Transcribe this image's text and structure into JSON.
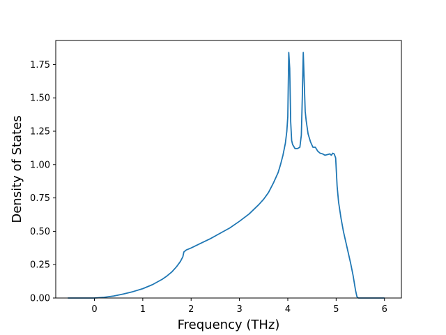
{
  "chart_data": {
    "type": "line",
    "xlabel": "Frequency (THz)",
    "ylabel": "Density of States",
    "xlim": [
      -0.8,
      6.35
    ],
    "ylim": [
      0,
      1.93
    ],
    "xticks": [
      0,
      1,
      2,
      3,
      4,
      5,
      6
    ],
    "xtick_labels": [
      "0",
      "1",
      "2",
      "3",
      "4",
      "5",
      "6"
    ],
    "yticks": [
      0,
      0.25,
      0.5,
      0.75,
      1.0,
      1.25,
      1.5,
      1.75
    ],
    "ytick_labels": [
      "0.00",
      "0.25",
      "0.50",
      "0.75",
      "1.00",
      "1.25",
      "1.50",
      "1.75"
    ],
    "grid": false,
    "line_color": "#1f77b4",
    "series": [
      {
        "x": [
          -0.55,
          -0.2,
          0.0,
          0.2,
          0.4,
          0.6,
          0.8,
          1.0,
          1.2,
          1.4,
          1.5,
          1.6,
          1.7,
          1.78,
          1.83,
          1.85,
          1.9,
          2.0,
          2.2,
          2.4,
          2.6,
          2.8,
          3.0,
          3.2,
          3.4,
          3.5,
          3.6,
          3.7,
          3.8,
          3.85,
          3.9,
          3.95,
          3.98,
          4.0,
          4.02,
          4.04,
          4.06,
          4.08,
          4.1,
          4.15,
          4.2,
          4.25,
          4.28,
          4.3,
          4.32,
          4.34,
          4.36,
          4.38,
          4.42,
          4.47,
          4.52,
          4.57,
          4.62,
          4.67,
          4.72,
          4.77,
          4.82,
          4.87,
          4.9,
          4.93,
          4.96,
          4.99,
          5.02,
          5.05,
          5.1,
          5.15,
          5.2,
          5.25,
          5.3,
          5.35,
          5.4,
          5.43,
          5.46,
          5.48,
          5.5,
          5.7,
          6.0
        ],
        "y": [
          0.0,
          0.0,
          0.0,
          0.005,
          0.015,
          0.03,
          0.048,
          0.07,
          0.1,
          0.14,
          0.165,
          0.195,
          0.235,
          0.275,
          0.31,
          0.345,
          0.36,
          0.375,
          0.41,
          0.445,
          0.485,
          0.525,
          0.575,
          0.63,
          0.7,
          0.74,
          0.79,
          0.86,
          0.94,
          1.0,
          1.07,
          1.16,
          1.25,
          1.36,
          1.84,
          1.72,
          1.32,
          1.18,
          1.15,
          1.12,
          1.12,
          1.13,
          1.22,
          1.5,
          1.84,
          1.62,
          1.4,
          1.33,
          1.23,
          1.17,
          1.13,
          1.13,
          1.1,
          1.085,
          1.08,
          1.07,
          1.075,
          1.08,
          1.07,
          1.085,
          1.08,
          1.05,
          0.84,
          0.72,
          0.6,
          0.5,
          0.42,
          0.34,
          0.26,
          0.17,
          0.06,
          0.01,
          0.0,
          0.0,
          0.0,
          0.0,
          0.0
        ]
      }
    ]
  }
}
